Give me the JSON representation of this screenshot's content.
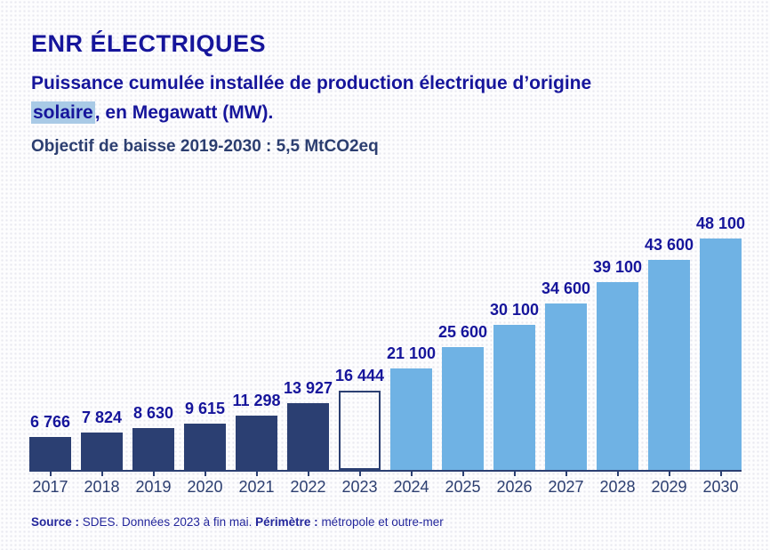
{
  "header": {
    "title": "ENR ÉLECTRIQUES",
    "subtitle_line1": "Puissance cumulée installée de production électrique d’origine",
    "subtitle_highlight": "solaire",
    "subtitle_rest": ", en Megawatt (MW).",
    "objective": "Objectif de baisse 2019-2030 : 5,5 MtCO2eq"
  },
  "chart_data": {
    "type": "bar",
    "title": "Puissance cumulée installée de production électrique d’origine solaire, en Megawatt (MW)",
    "xlabel": "",
    "ylabel": "",
    "ylim": [
      0,
      48100
    ],
    "grid": false,
    "legend": false,
    "categories": [
      "2017",
      "2018",
      "2019",
      "2020",
      "2021",
      "2022",
      "2023",
      "2024",
      "2025",
      "2026",
      "2027",
      "2028",
      "2029",
      "2030"
    ],
    "values": [
      6766,
      7824,
      8630,
      9615,
      11298,
      13927,
      16444,
      21100,
      25600,
      30100,
      34600,
      39100,
      43600,
      48100
    ],
    "value_labels": [
      "6 766",
      "7 824",
      "8 630",
      "9 615",
      "11 298",
      "13 927",
      "16 444",
      "21 100",
      "25 600",
      "30 100",
      "34 600",
      "39 100",
      "43 600",
      "48 100"
    ],
    "bar_styles": [
      "dark",
      "dark",
      "dark",
      "dark",
      "dark",
      "dark",
      "outline",
      "light",
      "light",
      "light",
      "light",
      "light",
      "light",
      "light"
    ],
    "colors": {
      "dark_bar": "#2b3f72",
      "light_bar": "#6fb2e4",
      "outline_border": "#2b3f72",
      "value_label": "#16159b",
      "axis": "#2b3f72",
      "year_label": "#2c3e70"
    }
  },
  "theme": {
    "bright_blue": "#16159b",
    "navy_text": "#2c3e70",
    "highlight_bg": "#a9cae6",
    "source_color": "#23269b"
  },
  "footer": {
    "source_label": "Source :",
    "source_text": " SDES. Données 2023 à fin mai. ",
    "perimeter_label": "Périmètre :",
    "perimeter_text": " métropole et outre-mer"
  }
}
